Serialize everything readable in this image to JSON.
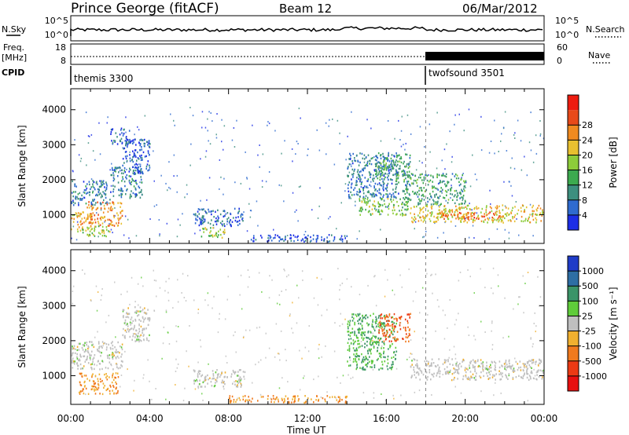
{
  "header": {
    "station": "Prince George (fitACF)",
    "beam": "Beam 12",
    "date": "06/Mar/2012"
  },
  "strips": {
    "nsky_label": "N.Sky",
    "nsearch_label": "N.Search",
    "nsky_ticks": [
      "10^5",
      "10^0"
    ],
    "nsearch_ticks": [
      "10^5",
      "10^0"
    ],
    "freq_label_1": "Freq.",
    "freq_label_2": "[MHz]",
    "freq_ticks": [
      "18",
      "8"
    ],
    "nave_label": "Nave",
    "nave_ticks": [
      "60",
      "0"
    ],
    "cpid_label": "CPID",
    "cpid_segments": [
      {
        "name": "themis 3300",
        "start_hour": 0
      },
      {
        "name": "twofsound 3501",
        "start_hour": 18
      }
    ]
  },
  "chart_data": [
    {
      "type": "heatmap",
      "title": "",
      "xlabel": "Time UT",
      "ylabel": "Slant Range [km]",
      "xlim": [
        0,
        24
      ],
      "ylim": [
        180,
        4600
      ],
      "xticks": [
        "00:00",
        "04:00",
        "08:00",
        "12:00",
        "16:00",
        "20:00",
        "00:00"
      ],
      "yticks": [
        1000,
        2000,
        3000,
        4000
      ],
      "colorbar": {
        "label": "Power [dB]",
        "ticks": [
          "4",
          "8",
          "12",
          "16",
          "20",
          "24",
          "28"
        ],
        "colors": [
          "#1c2ee6",
          "#2f6bcf",
          "#3d8f7f",
          "#3caa4f",
          "#8dcc3a",
          "#e8c030",
          "#f08a20",
          "#e84a1a",
          "#ee1c10"
        ]
      },
      "regions": [
        {
          "t0": 0.0,
          "t1": 1.2,
          "r0": 600,
          "r1": 1100,
          "value": 24
        },
        {
          "t0": 0.8,
          "t1": 2.6,
          "r0": 700,
          "r1": 1400,
          "value": 26
        },
        {
          "t0": 0.0,
          "t1": 2.0,
          "r0": 1300,
          "r1": 2000,
          "value": 8
        },
        {
          "t0": 2.0,
          "t1": 3.6,
          "r0": 1500,
          "r1": 2400,
          "value": 8
        },
        {
          "t0": 2.6,
          "t1": 4.0,
          "r0": 2200,
          "r1": 3200,
          "value": 6
        },
        {
          "t0": 0.3,
          "t1": 2.0,
          "r0": 400,
          "r1": 700,
          "value": 18
        },
        {
          "t0": 2.0,
          "t1": 3.0,
          "r0": 3000,
          "r1": 3500,
          "value": 6
        },
        {
          "t0": 6.2,
          "t1": 8.8,
          "r0": 700,
          "r1": 1200,
          "value": 6
        },
        {
          "t0": 6.5,
          "t1": 7.8,
          "r0": 350,
          "r1": 650,
          "value": 18
        },
        {
          "t0": 9.0,
          "t1": 14.0,
          "r0": 250,
          "r1": 450,
          "value": 4
        },
        {
          "t0": 14.0,
          "t1": 16.6,
          "r0": 1500,
          "r1": 2800,
          "value": 8
        },
        {
          "t0": 14.6,
          "t1": 17.2,
          "r0": 1000,
          "r1": 1500,
          "value": 16
        },
        {
          "t0": 15.4,
          "t1": 17.2,
          "r0": 2000,
          "r1": 2800,
          "value": 12
        },
        {
          "t0": 16.8,
          "t1": 20.0,
          "r0": 1300,
          "r1": 2200,
          "value": 12
        },
        {
          "t0": 17.2,
          "t1": 24.0,
          "r0": 800,
          "r1": 1300,
          "value": 22
        },
        {
          "t0": 18.8,
          "t1": 21.8,
          "r0": 900,
          "r1": 1100,
          "value": 28
        }
      ]
    },
    {
      "type": "heatmap",
      "title": "",
      "xlabel": "Time UT",
      "ylabel": "Slant Range [km]",
      "xlim": [
        0,
        24
      ],
      "ylim": [
        180,
        4600
      ],
      "xticks": [
        "00:00",
        "04:00",
        "08:00",
        "12:00",
        "16:00",
        "20:00",
        "00:00"
      ],
      "yticks": [
        1000,
        2000,
        3000,
        4000
      ],
      "colorbar": {
        "label": "Velocity [m s⁻¹]",
        "ticks": [
          "1000",
          "500",
          "100",
          "25",
          "-25",
          "-100",
          "-500",
          "-1000"
        ],
        "colors": [
          "#1f3cc8",
          "#2e6ea4",
          "#3b9468",
          "#5fcc3a",
          "#bfbfbf",
          "#f0b030",
          "#f07a1e",
          "#ec3a14",
          "#e81010"
        ]
      },
      "regions": [
        {
          "t0": 0.4,
          "t1": 2.4,
          "r0": 500,
          "r1": 1100,
          "value": -100
        },
        {
          "t0": 0.0,
          "t1": 2.6,
          "r0": 1200,
          "r1": 2000,
          "value": 0
        },
        {
          "t0": 2.6,
          "t1": 4.0,
          "r0": 2000,
          "r1": 3000,
          "value": 0
        },
        {
          "t0": 6.2,
          "t1": 8.8,
          "r0": 700,
          "r1": 1200,
          "value": 0
        },
        {
          "t0": 14.0,
          "t1": 16.5,
          "r0": 1200,
          "r1": 2800,
          "value": 100
        },
        {
          "t0": 15.6,
          "t1": 17.2,
          "r0": 2000,
          "r1": 2800,
          "value": -500
        },
        {
          "t0": 17.2,
          "t1": 24.0,
          "r0": 900,
          "r1": 1500,
          "value": 0
        },
        {
          "t0": 8.0,
          "t1": 14.0,
          "r0": 250,
          "r1": 450,
          "value": -100
        }
      ]
    }
  ]
}
